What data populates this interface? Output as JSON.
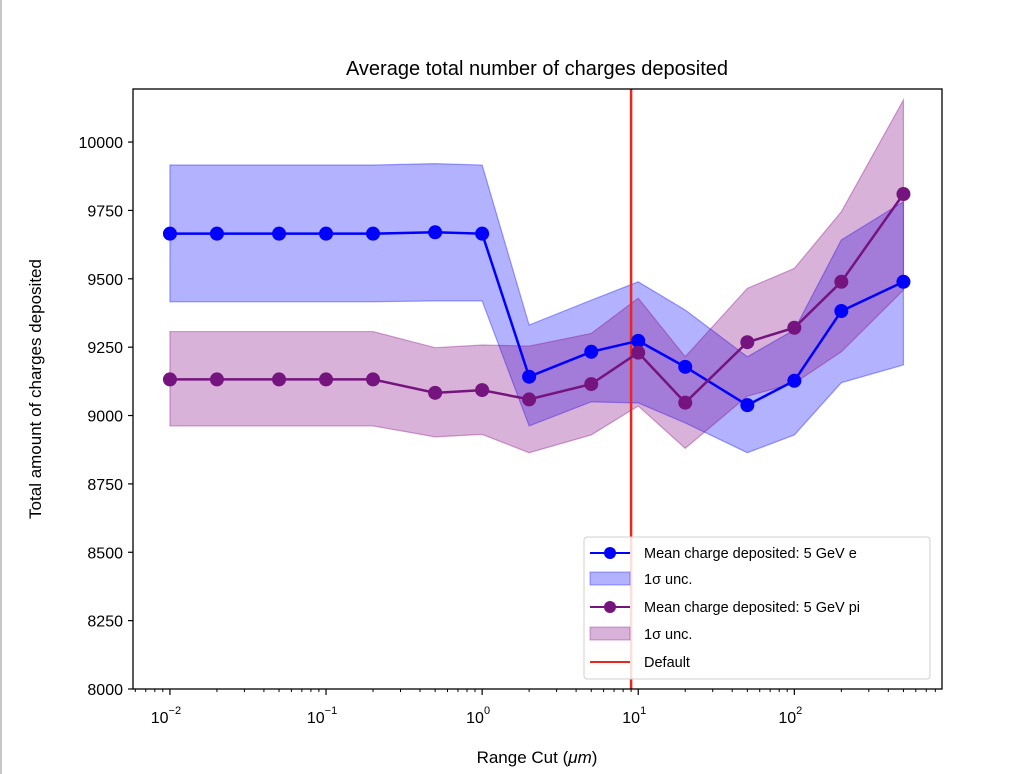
{
  "chart_data": {
    "type": "line",
    "title": "Average total number of charges deposited",
    "xlabel": "Range Cut (μm)",
    "ylabel": "Total amount of charges deposited",
    "xscale": "log",
    "xlim": [
      0.0058,
      883
    ],
    "ylim": [
      8000,
      10194
    ],
    "grid": false,
    "legend_position": "lower-right",
    "x": [
      0.01,
      0.02,
      0.05,
      0.1,
      0.2,
      0.5,
      1,
      2,
      5,
      10,
      20,
      50,
      100,
      200,
      500
    ],
    "x_ticks": [
      {
        "base": "10",
        "exp": "−2",
        "value": 0.01
      },
      {
        "base": "10",
        "exp": "−1",
        "value": 0.1
      },
      {
        "base": "10",
        "exp": "0",
        "value": 1
      },
      {
        "base": "10",
        "exp": "1",
        "value": 10
      },
      {
        "base": "10",
        "exp": "2",
        "value": 100
      }
    ],
    "y_ticks": [
      "8000",
      "8250",
      "8500",
      "8750",
      "9000",
      "9250",
      "9500",
      "9750",
      "10000"
    ],
    "series": [
      {
        "name": "Mean charge deposited: 5 GeV e",
        "color": "#0000ff",
        "values": [
          9665,
          9665,
          9665,
          9665,
          9665,
          9670,
          9665,
          9142,
          9233,
          9273,
          9178,
          9038,
          9127,
          9382,
          9489
        ],
        "band_name": "1σ unc.",
        "band_upper": [
          9916,
          9916,
          9916,
          9916,
          9916,
          9921,
          9916,
          9331,
          9422,
          9489,
          9386,
          9215,
          9313,
          9642,
          9782
        ],
        "band_lower": [
          9416,
          9416,
          9416,
          9416,
          9416,
          9419,
          9419,
          8962,
          9050,
          9046,
          8973,
          8864,
          8929,
          9120,
          9185
        ]
      },
      {
        "name": "Mean charge deposited: 5 GeV pi",
        "color": "#75147e",
        "values": [
          9132,
          9132,
          9132,
          9132,
          9132,
          9083,
          9093,
          9059,
          9115,
          9230,
          9047,
          9268,
          9321,
          9489,
          9810
        ],
        "band_name": "1σ unc.",
        "band_upper": [
          9307,
          9307,
          9307,
          9307,
          9307,
          9248,
          9258,
          9254,
          9300,
          9429,
          9215,
          9465,
          9538,
          9745,
          10154
        ],
        "band_lower": [
          8962,
          8962,
          8962,
          8962,
          8962,
          8922,
          8931,
          8864,
          8929,
          9035,
          8880,
          9071,
          9118,
          9233,
          9459
        ]
      }
    ],
    "vline": {
      "name": "Default",
      "x": 9,
      "color": "#e8281e"
    }
  }
}
